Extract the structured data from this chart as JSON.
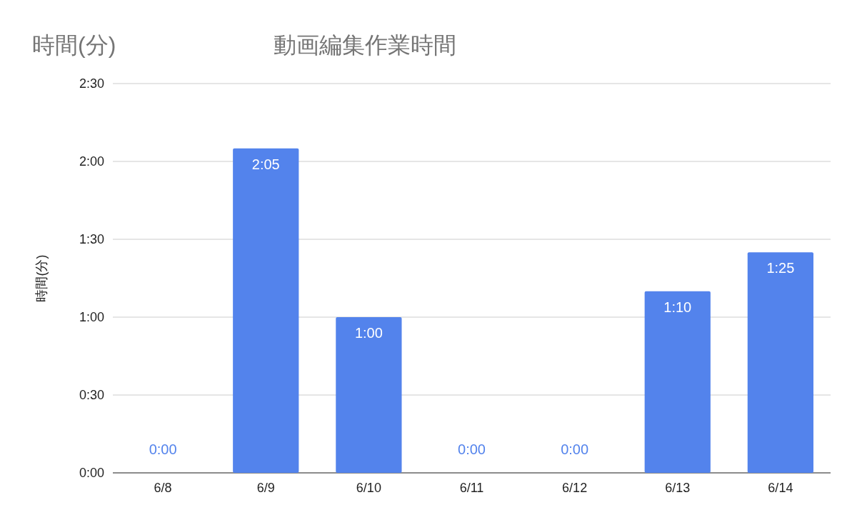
{
  "chart_data": {
    "type": "bar",
    "title": "動画編集作業時間",
    "ylabel": "時間(分)",
    "annotations": [
      "時間(分)"
    ],
    "categories": [
      "6/8",
      "6/9",
      "6/10",
      "6/11",
      "6/12",
      "6/13",
      "6/14"
    ],
    "values": [
      0,
      125,
      60,
      0,
      0,
      70,
      85
    ],
    "value_labels": [
      "0:00",
      "2:05",
      "1:00",
      "0:00",
      "0:00",
      "1:10",
      "1:25"
    ],
    "color": "#5383ec",
    "ylim": [
      0,
      150
    ],
    "yticks": [
      {
        "value": 0,
        "label": "0:00"
      },
      {
        "value": 30,
        "label": "0:30"
      },
      {
        "value": 60,
        "label": "1:00"
      },
      {
        "value": 90,
        "label": "1:30"
      },
      {
        "value": 120,
        "label": "2:00"
      },
      {
        "value": 150,
        "label": "2:30"
      }
    ],
    "grid": "y"
  }
}
